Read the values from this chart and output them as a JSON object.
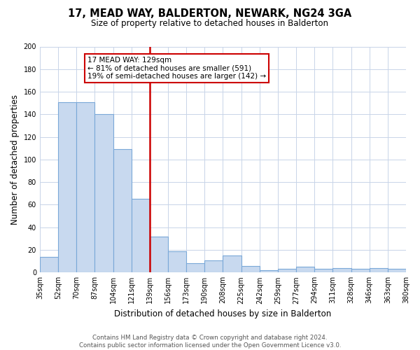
{
  "title": "17, MEAD WAY, BALDERTON, NEWARK, NG24 3GA",
  "subtitle": "Size of property relative to detached houses in Balderton",
  "xlabel": "Distribution of detached houses by size in Balderton",
  "ylabel": "Number of detached properties",
  "bin_labels": [
    "35sqm",
    "52sqm",
    "70sqm",
    "87sqm",
    "104sqm",
    "121sqm",
    "139sqm",
    "156sqm",
    "173sqm",
    "190sqm",
    "208sqm",
    "225sqm",
    "242sqm",
    "259sqm",
    "277sqm",
    "294sqm",
    "311sqm",
    "328sqm",
    "346sqm",
    "363sqm",
    "380sqm"
  ],
  "values": [
    14,
    151,
    151,
    140,
    109,
    65,
    32,
    19,
    8,
    11,
    15,
    6,
    2,
    3,
    5,
    3,
    4,
    3,
    4,
    3
  ],
  "bar_color": "#c8d9ef",
  "bar_edge_color": "#7aa8d8",
  "vline_position": 6,
  "vline_color": "#cc0000",
  "ylim": [
    0,
    200
  ],
  "yticks": [
    0,
    20,
    40,
    60,
    80,
    100,
    120,
    140,
    160,
    180,
    200
  ],
  "annotation_title": "17 MEAD WAY: 129sqm",
  "annotation_line1": "← 81% of detached houses are smaller (591)",
  "annotation_line2": "19% of semi-detached houses are larger (142) →",
  "annotation_box_facecolor": "#ffffff",
  "annotation_box_edgecolor": "#cc0000",
  "footer_line1": "Contains HM Land Registry data © Crown copyright and database right 2024.",
  "footer_line2": "Contains public sector information licensed under the Open Government Licence v3.0.",
  "bg_color": "#ffffff",
  "grid_color": "#c8d4e8"
}
